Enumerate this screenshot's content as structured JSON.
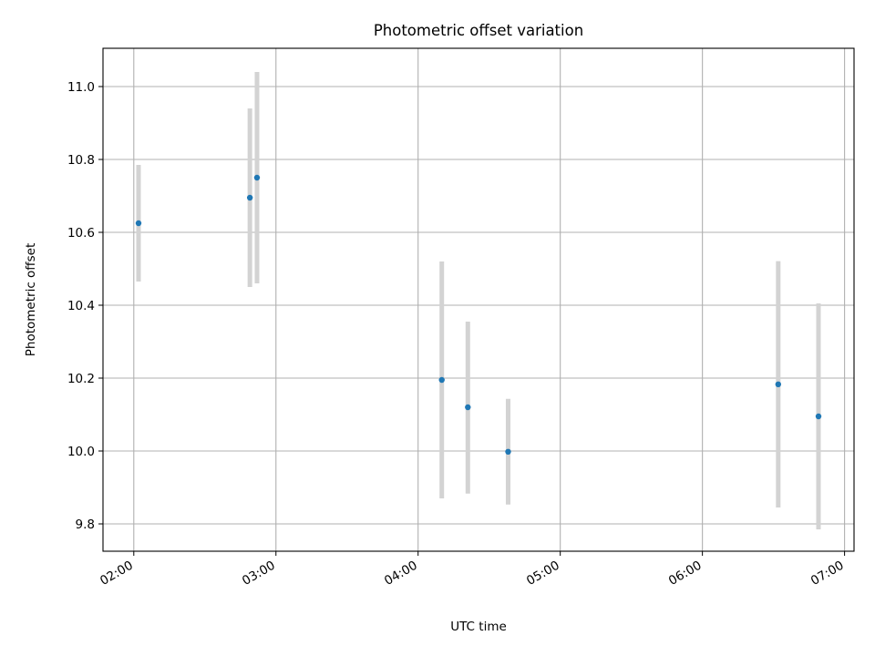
{
  "chart_data": {
    "type": "scatter",
    "title": "Photometric offset variation",
    "xlabel": "UTC time",
    "ylabel": "Photometric offset",
    "x_ticks": [
      "02:00",
      "03:00",
      "04:00",
      "05:00",
      "06:00",
      "07:00"
    ],
    "y_ticks": [
      "9.8",
      "10.0",
      "10.2",
      "10.4",
      "10.6",
      "10.8",
      "11.0"
    ],
    "xlim": [
      "01:47",
      "07:04"
    ],
    "ylim": [
      9.725,
      11.105
    ],
    "grid": true,
    "colors": {
      "marker": "#1f77b4",
      "errorbar": "#d3d3d3",
      "grid": "#b0b0b0"
    },
    "points": [
      {
        "x": "02:02",
        "y": 10.625,
        "ymin": 10.465,
        "ymax": 10.785
      },
      {
        "x": "02:49",
        "y": 10.695,
        "ymin": 10.45,
        "ymax": 10.94
      },
      {
        "x": "02:52",
        "y": 10.75,
        "ymin": 10.46,
        "ymax": 11.04
      },
      {
        "x": "04:10",
        "y": 10.195,
        "ymin": 9.87,
        "ymax": 10.52
      },
      {
        "x": "04:21",
        "y": 10.12,
        "ymin": 9.883,
        "ymax": 10.355
      },
      {
        "x": "04:38",
        "y": 9.998,
        "ymin": 9.853,
        "ymax": 10.143
      },
      {
        "x": "06:32",
        "y": 10.183,
        "ymin": 9.845,
        "ymax": 10.521
      },
      {
        "x": "06:49",
        "y": 10.095,
        "ymin": 9.785,
        "ymax": 10.405
      }
    ]
  }
}
